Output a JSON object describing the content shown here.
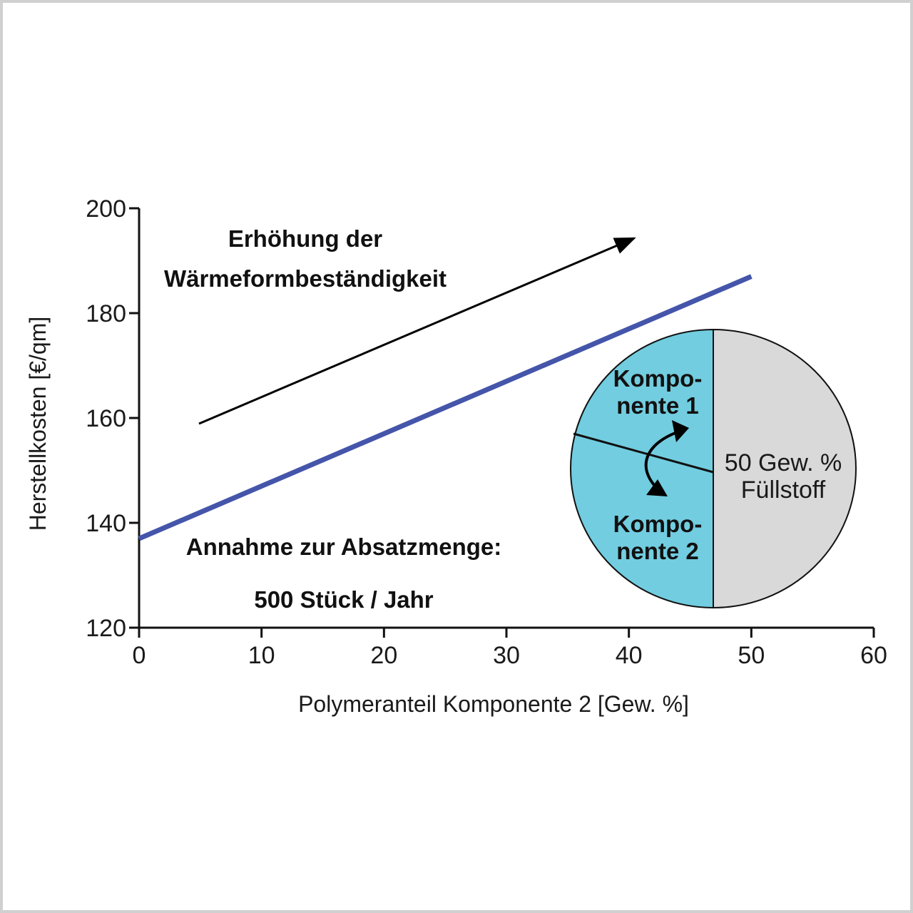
{
  "chart_data": {
    "type": "line",
    "xlabel": "Polymeranteil Komponente 2   [Gew. %]",
    "ylabel": "Herstellkosten   [€/qm]",
    "xlim": [
      0,
      60
    ],
    "ylim": [
      120,
      200
    ],
    "xticks": [
      0,
      10,
      20,
      30,
      40,
      50,
      60
    ],
    "yticks": [
      120,
      140,
      160,
      180,
      200
    ],
    "xtick_labels": [
      "0",
      "10",
      "20",
      "30",
      "40",
      "50",
      "60"
    ],
    "ytick_labels": [
      "120",
      "140",
      "160",
      "180",
      "200"
    ],
    "grid": false,
    "series": [
      {
        "x": [
          0,
          50
        ],
        "y": [
          137,
          187
        ],
        "color": "#4455aa"
      }
    ],
    "annotations": {
      "arrow_label_line1": "Erhöhung der",
      "arrow_label_line2": "Wärmeformbeständigkeit",
      "assumption_line1": "Annahme zur Absatzmenge:",
      "assumption_line2": "500 Stück / Jahr"
    },
    "inset_pie": {
      "slices": [
        {
          "label_line1": "Kompo-",
          "label_line2": "nente 1",
          "color": "#72cde0"
        },
        {
          "label_line1": "Kompo-",
          "label_line2": "nente 2",
          "color": "#72cde0"
        },
        {
          "label_line1": "50  Gew. %",
          "label_line2": "Füllstoff",
          "value": 50,
          "color": "#d9d9d9"
        }
      ]
    }
  }
}
